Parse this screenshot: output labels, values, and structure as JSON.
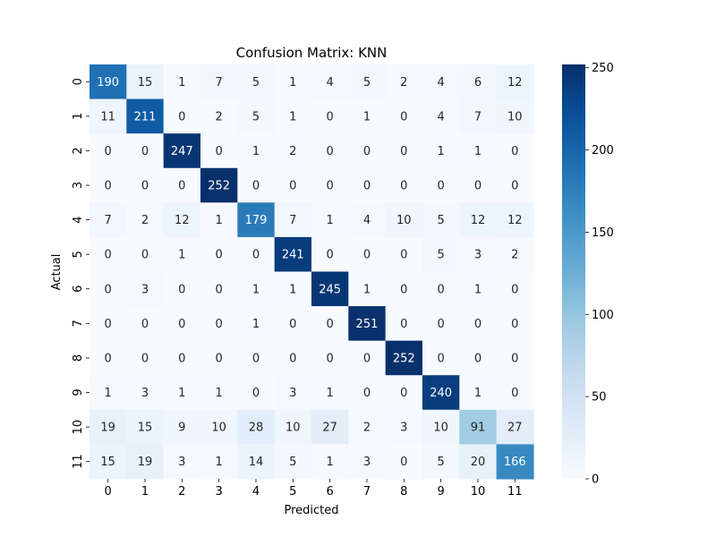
{
  "chart_data": {
    "type": "heatmap",
    "title": "Confusion Matrix: KNN",
    "xlabel": "Predicted",
    "ylabel": "Actual",
    "x_categories": [
      "0",
      "1",
      "2",
      "3",
      "4",
      "5",
      "6",
      "7",
      "8",
      "9",
      "10",
      "11"
    ],
    "y_categories": [
      "0",
      "1",
      "2",
      "3",
      "4",
      "5",
      "6",
      "7",
      "8",
      "9",
      "10",
      "11"
    ],
    "values": [
      [
        190,
        15,
        1,
        7,
        5,
        1,
        4,
        5,
        2,
        4,
        6,
        12
      ],
      [
        11,
        211,
        0,
        2,
        5,
        1,
        0,
        1,
        0,
        4,
        7,
        10
      ],
      [
        0,
        0,
        247,
        0,
        1,
        2,
        0,
        0,
        0,
        1,
        1,
        0
      ],
      [
        0,
        0,
        0,
        252,
        0,
        0,
        0,
        0,
        0,
        0,
        0,
        0
      ],
      [
        7,
        2,
        12,
        1,
        179,
        7,
        1,
        4,
        10,
        5,
        12,
        12
      ],
      [
        0,
        0,
        1,
        0,
        0,
        241,
        0,
        0,
        0,
        5,
        3,
        2
      ],
      [
        0,
        3,
        0,
        0,
        1,
        1,
        245,
        1,
        0,
        0,
        1,
        0
      ],
      [
        0,
        0,
        0,
        0,
        1,
        0,
        0,
        251,
        0,
        0,
        0,
        0
      ],
      [
        0,
        0,
        0,
        0,
        0,
        0,
        0,
        0,
        252,
        0,
        0,
        0
      ],
      [
        1,
        3,
        1,
        1,
        0,
        3,
        1,
        0,
        0,
        240,
        1,
        0
      ],
      [
        19,
        15,
        9,
        10,
        28,
        10,
        27,
        2,
        3,
        10,
        91,
        27
      ],
      [
        15,
        19,
        3,
        1,
        14,
        5,
        1,
        3,
        0,
        5,
        20,
        166
      ]
    ],
    "vmin": 0,
    "vmax": 252,
    "colormap": "Blues",
    "colorbar_ticks": [
      0,
      50,
      100,
      150,
      200,
      250
    ],
    "annotations": true
  }
}
